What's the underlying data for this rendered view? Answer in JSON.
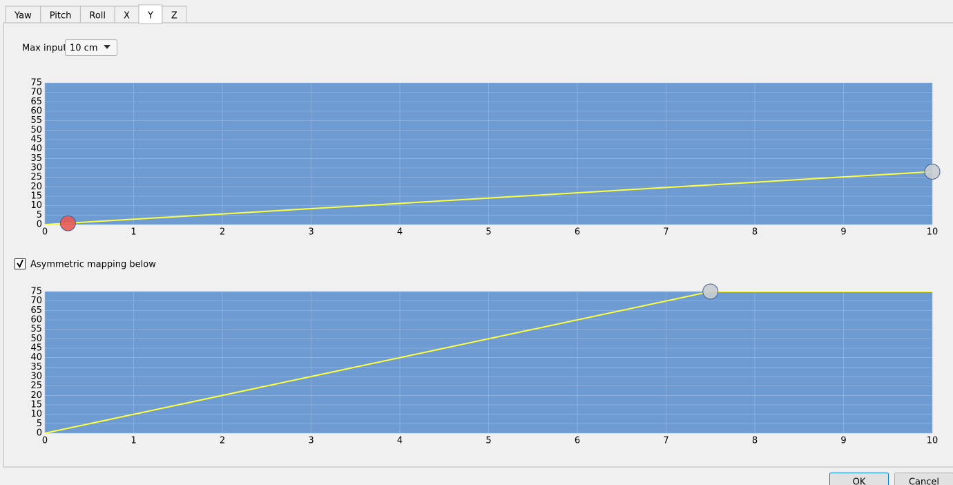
{
  "tabs": [
    {
      "label": "Yaw"
    },
    {
      "label": "Pitch"
    },
    {
      "label": "Roll"
    },
    {
      "label": "X"
    },
    {
      "label": "Y",
      "selected": true
    },
    {
      "label": "Z"
    }
  ],
  "max_input": {
    "label": "Max input",
    "value": "10 cm"
  },
  "checkbox": {
    "label": "Asymmetric mapping below",
    "checked": true
  },
  "buttons": [
    "OK",
    "Cancel"
  ],
  "chart_data": [
    {
      "type": "line",
      "xlim": [
        0,
        10
      ],
      "ylim": [
        0,
        75
      ],
      "xticks": [
        0,
        1,
        2,
        3,
        4,
        5,
        6,
        7,
        8,
        9,
        10
      ],
      "yticks": [
        0,
        5,
        10,
        15,
        20,
        25,
        30,
        35,
        40,
        45,
        50,
        55,
        60,
        65,
        70,
        75
      ],
      "grid": true,
      "background": "#6f9bd3",
      "series": [
        {
          "color": "#ffff3c",
          "x": [
            0,
            10
          ],
          "values": [
            0,
            28
          ]
        },
        {
          "color": "#c9cdd2",
          "marker": "circle",
          "x": [
            10
          ],
          "values": [
            28
          ]
        },
        {
          "color": "#e85a55",
          "marker": "circle",
          "x": [
            0.26
          ],
          "values": [
            0.7
          ]
        }
      ]
    },
    {
      "type": "line",
      "xlim": [
        0,
        10
      ],
      "ylim": [
        0,
        75
      ],
      "xticks": [
        0,
        1,
        2,
        3,
        4,
        5,
        6,
        7,
        8,
        9,
        10
      ],
      "yticks": [
        0,
        5,
        10,
        15,
        20,
        25,
        30,
        35,
        40,
        45,
        50,
        55,
        60,
        65,
        70,
        75
      ],
      "grid": true,
      "background": "#6f9bd3",
      "series": [
        {
          "color": "#ffff3c",
          "x": [
            0,
            7.5,
            10
          ],
          "values": [
            0,
            75,
            75
          ]
        },
        {
          "color": "#c9cdd2",
          "marker": "circle",
          "x": [
            7.5
          ],
          "values": [
            75
          ]
        }
      ]
    }
  ]
}
